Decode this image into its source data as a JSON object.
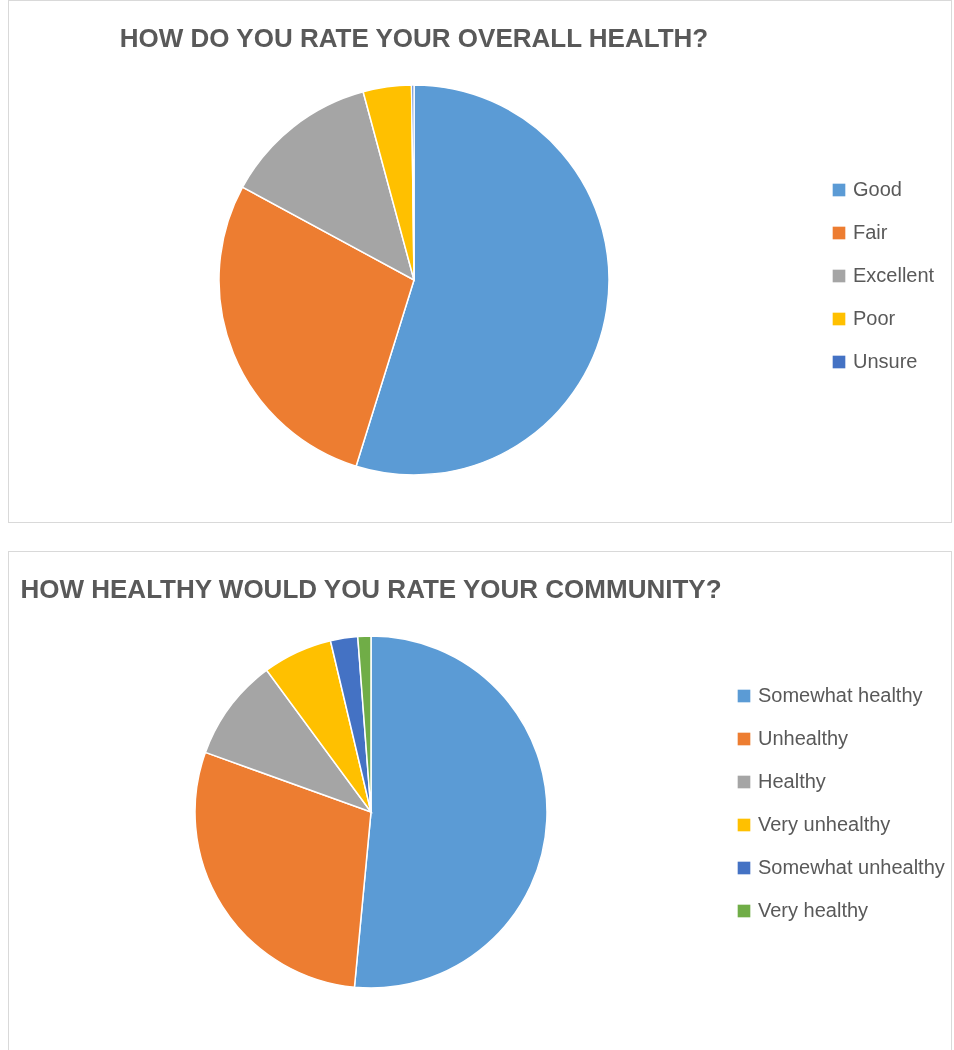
{
  "chart_data": [
    {
      "type": "pie",
      "title": "HOW DO YOU RATE YOUR OVERALL HEALTH?",
      "categories": [
        "Good",
        "Fair",
        "Excellent",
        "Poor",
        "Unsure"
      ],
      "values": [
        54.8,
        28.1,
        12.9,
        4.0,
        0.2
      ],
      "colors": [
        "#5b9bd5",
        "#ed7d31",
        "#a5a5a5",
        "#ffc000",
        "#4472c4"
      ],
      "legend": "right"
    },
    {
      "type": "pie",
      "title": "HOW HEALTHY WOULD YOU RATE YOUR COMMUNITY?",
      "categories": [
        "Somewhat healthy",
        "Unhealthy",
        "Healthy",
        "Very unhealthy",
        "Somewhat unhealthy",
        "Very healthy"
      ],
      "values": [
        51.5,
        29.0,
        9.4,
        6.4,
        2.5,
        1.2
      ],
      "colors": [
        "#5b9bd5",
        "#ed7d31",
        "#a5a5a5",
        "#ffc000",
        "#4472c4",
        "#70ad47"
      ],
      "legend": "right"
    }
  ]
}
